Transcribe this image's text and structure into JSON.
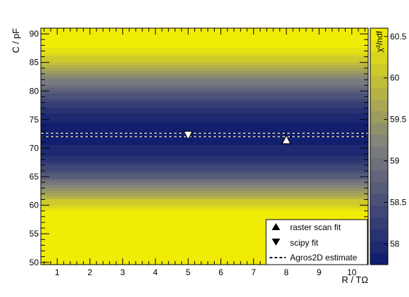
{
  "chart_data": {
    "type": "heatmap",
    "title": "",
    "xlabel": "R / TΩ",
    "ylabel": "C / pF",
    "xlim": [
      0.5,
      10.5
    ],
    "ylim": [
      49.6,
      91.0
    ],
    "x_ticks": [
      1,
      2,
      3,
      4,
      5,
      6,
      7,
      8,
      9,
      10
    ],
    "y_ticks": [
      50,
      55,
      60,
      65,
      70,
      75,
      80,
      85,
      90
    ],
    "colorbar": {
      "label": "χ²/ndf",
      "ticks": [
        58,
        58.5,
        59,
        59.5,
        60,
        60.5
      ],
      "range": [
        57.75,
        60.6
      ],
      "colors": {
        "low": "#0c1a6e",
        "mid": "#7f7f7f",
        "high": "#f7f200"
      }
    },
    "heatmap_profile": {
      "axis": "y",
      "y": [
        49.6,
        57.0,
        59.0,
        61.0,
        63.0,
        65.0,
        67.0,
        69.0,
        71.0,
        72.5,
        74.0,
        76.0,
        78.0,
        80.0,
        82.0,
        84.0,
        86.0,
        88.0,
        91.0
      ],
      "value": [
        60.6,
        60.6,
        60.5,
        60.0,
        59.3,
        58.7,
        58.3,
        58.0,
        57.85,
        57.8,
        57.85,
        58.0,
        58.3,
        58.7,
        59.2,
        59.7,
        60.2,
        60.5,
        60.6
      ]
    },
    "markers": [
      {
        "name": "raster scan fit",
        "symbol": "triangle-up",
        "x": 8,
        "y": 71.5
      },
      {
        "name": "scipy fit",
        "symbol": "triangle-down",
        "x": 5,
        "y": 72.2
      }
    ],
    "lines": [
      {
        "name": "Agros2D estimate",
        "style": "dashed",
        "y": [
          72.0,
          72.6
        ]
      }
    ],
    "legend": {
      "position": "bottom-right",
      "entries": [
        "raster scan fit",
        "scipy fit",
        "Agros2D estimate"
      ]
    },
    "grid": false
  }
}
